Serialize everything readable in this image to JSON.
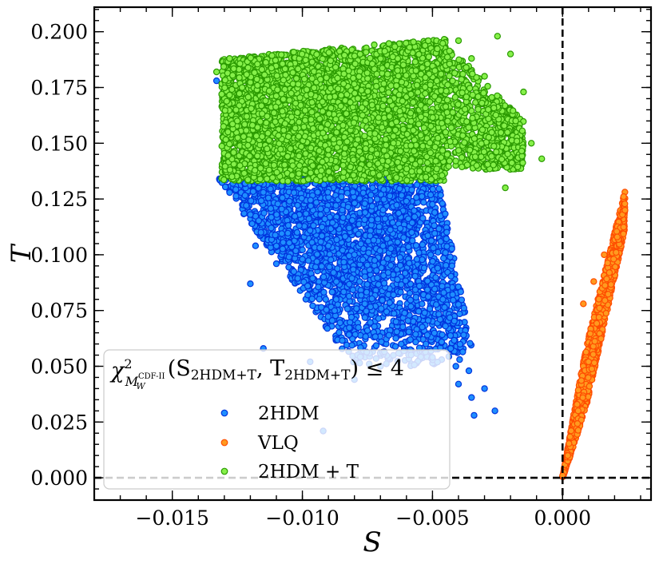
{
  "chart_data": {
    "type": "scatter",
    "title": "",
    "xlabel": "S",
    "ylabel": "T",
    "xlim": [
      -0.018,
      0.0034
    ],
    "ylim": [
      -0.01,
      0.211
    ],
    "x_ticks": [
      -0.015,
      -0.01,
      -0.005,
      0.0
    ],
    "x_tick_labels": [
      "−0.015",
      "−0.010",
      "−0.005",
      "0.000"
    ],
    "y_ticks": [
      0.0,
      0.025,
      0.05,
      0.075,
      0.1,
      0.125,
      0.15,
      0.175,
      0.2
    ],
    "y_tick_labels": [
      "0.000",
      "0.025",
      "0.050",
      "0.075",
      "0.100",
      "0.125",
      "0.150",
      "0.175",
      "0.200"
    ],
    "reference_lines": {
      "x": 0.0,
      "y": 0.0,
      "style": "dashed"
    },
    "legend": {
      "placement": "lower-left",
      "title_parts": {
        "chi": "χ",
        "sup": "2",
        "sub_m": "M",
        "sub_w": "W",
        "sub_cdf": "CDF-II",
        "open": "(S",
        "sub1": "2HDM+T",
        "comma": ",  T",
        "sub2": "2HDM+T",
        "close": ") ≤ 4"
      }
    },
    "series": [
      {
        "name": "2HDM",
        "face_color": "#1f8fff",
        "edge_color": "#0033dd",
        "points": [
          {
            "x": -0.0133,
            "y": 0.178
          },
          {
            "x": -0.0128,
            "y": 0.165
          },
          {
            "x": -0.0126,
            "y": 0.14
          },
          {
            "x": -0.0122,
            "y": 0.132
          },
          {
            "x": -0.012,
            "y": 0.118
          },
          {
            "x": -0.0118,
            "y": 0.104
          },
          {
            "x": -0.0119,
            "y": 0.145
          },
          {
            "x": -0.0115,
            "y": 0.128
          },
          {
            "x": -0.0112,
            "y": 0.112
          },
          {
            "x": -0.011,
            "y": 0.096
          },
          {
            "x": -0.012,
            "y": 0.087
          },
          {
            "x": -0.0105,
            "y": 0.124
          },
          {
            "x": -0.0102,
            "y": 0.11
          },
          {
            "x": -0.01,
            "y": 0.098
          },
          {
            "x": -0.0098,
            "y": 0.086
          },
          {
            "x": -0.0095,
            "y": 0.132
          },
          {
            "x": -0.0093,
            "y": 0.118
          },
          {
            "x": -0.009,
            "y": 0.104
          },
          {
            "x": -0.0088,
            "y": 0.092
          },
          {
            "x": -0.0087,
            "y": 0.08
          },
          {
            "x": -0.0085,
            "y": 0.126
          },
          {
            "x": -0.0082,
            "y": 0.112
          },
          {
            "x": -0.008,
            "y": 0.1
          },
          {
            "x": -0.0078,
            "y": 0.088
          },
          {
            "x": -0.0076,
            "y": 0.078
          },
          {
            "x": -0.0075,
            "y": 0.066
          },
          {
            "x": -0.0073,
            "y": 0.13
          },
          {
            "x": -0.0071,
            "y": 0.116
          },
          {
            "x": -0.0069,
            "y": 0.104
          },
          {
            "x": -0.0067,
            "y": 0.092
          },
          {
            "x": -0.0065,
            "y": 0.082
          },
          {
            "x": -0.0064,
            "y": 0.07
          },
          {
            "x": -0.0062,
            "y": 0.06
          },
          {
            "x": -0.006,
            "y": 0.124
          },
          {
            "x": -0.0058,
            "y": 0.11
          },
          {
            "x": -0.0056,
            "y": 0.098
          },
          {
            "x": -0.0055,
            "y": 0.086
          },
          {
            "x": -0.0053,
            "y": 0.074
          },
          {
            "x": -0.0052,
            "y": 0.064
          },
          {
            "x": -0.005,
            "y": 0.054
          },
          {
            "x": -0.0048,
            "y": 0.094
          },
          {
            "x": -0.0046,
            "y": 0.08
          },
          {
            "x": -0.0045,
            "y": 0.068
          },
          {
            "x": -0.0043,
            "y": 0.058
          },
          {
            "x": -0.0041,
            "y": 0.05
          },
          {
            "x": -0.004,
            "y": 0.042
          },
          {
            "x": -0.0038,
            "y": 0.064
          },
          {
            "x": -0.0036,
            "y": 0.048
          },
          {
            "x": -0.0035,
            "y": 0.036
          },
          {
            "x": -0.0034,
            "y": 0.028
          },
          {
            "x": -0.003,
            "y": 0.04
          },
          {
            "x": -0.0026,
            "y": 0.03
          },
          {
            "x": -0.0097,
            "y": 0.052
          },
          {
            "x": -0.0092,
            "y": 0.021
          },
          {
            "x": -0.008,
            "y": 0.044
          },
          {
            "x": -0.007,
            "y": 0.05
          },
          {
            "x": -0.0115,
            "y": 0.058
          }
        ],
        "clouds": [
          {
            "x_top": [
              -0.0133,
              -0.0048
            ],
            "x_bot": [
              -0.008,
              -0.0033
            ],
            "y": [
              0.05,
              0.135
            ],
            "count": 2200
          },
          {
            "x_top": [
              -0.012,
              -0.0055
            ],
            "x_bot": [
              -0.01,
              -0.006
            ],
            "y": [
              0.085,
              0.13
            ],
            "count": 500
          }
        ]
      },
      {
        "name": "VLQ",
        "face_color": "#ff9a1f",
        "edge_color": "#ff4d00",
        "points": [
          {
            "x": 0.0,
            "y": 0.001
          },
          {
            "x": 0.0002,
            "y": 0.01
          },
          {
            "x": 0.0006,
            "y": 0.03
          },
          {
            "x": 0.001,
            "y": 0.052
          },
          {
            "x": 0.0014,
            "y": 0.072
          },
          {
            "x": 0.0018,
            "y": 0.092
          },
          {
            "x": 0.0021,
            "y": 0.108
          },
          {
            "x": 0.0023,
            "y": 0.118
          },
          {
            "x": 0.0024,
            "y": 0.12
          },
          {
            "x": 0.0008,
            "y": 0.078
          },
          {
            "x": 0.0012,
            "y": 0.088
          },
          {
            "x": 0.0016,
            "y": 0.1
          }
        ],
        "band": {
          "t_range": [
            0.0,
            1.0
          ],
          "x_end": 0.0024,
          "y_end": 0.12,
          "y_spread": 0.034,
          "count": 1500
        }
      },
      {
        "name": "2HDM + T",
        "face_color": "#86f04a",
        "edge_color": "#2a9a00",
        "points": [
          {
            "x": -0.0133,
            "y": 0.182
          },
          {
            "x": -0.0131,
            "y": 0.172
          },
          {
            "x": -0.0128,
            "y": 0.188
          },
          {
            "x": -0.0125,
            "y": 0.16
          },
          {
            "x": -0.0124,
            "y": 0.14
          },
          {
            "x": -0.0012,
            "y": 0.15
          },
          {
            "x": -0.0008,
            "y": 0.143
          },
          {
            "x": -0.0015,
            "y": 0.173
          },
          {
            "x": -0.002,
            "y": 0.19
          },
          {
            "x": -0.0025,
            "y": 0.198
          },
          {
            "x": -0.004,
            "y": 0.196
          },
          {
            "x": -0.0022,
            "y": 0.13
          },
          {
            "x": -0.0018,
            "y": 0.16
          },
          {
            "x": -0.003,
            "y": 0.18
          },
          {
            "x": -0.0035,
            "y": 0.188
          }
        ],
        "clouds": [
          {
            "x_range": [
              -0.0131,
              -0.0045
            ],
            "y_bot": 0.133,
            "y_top_start": 0.188,
            "y_top_end": 0.197,
            "count": 4200
          },
          {
            "x_range": [
              -0.0045,
              -0.0015
            ],
            "y_bot": 0.138,
            "y_top_start": 0.195,
            "y_top_end": 0.16,
            "count": 700
          }
        ]
      }
    ]
  }
}
